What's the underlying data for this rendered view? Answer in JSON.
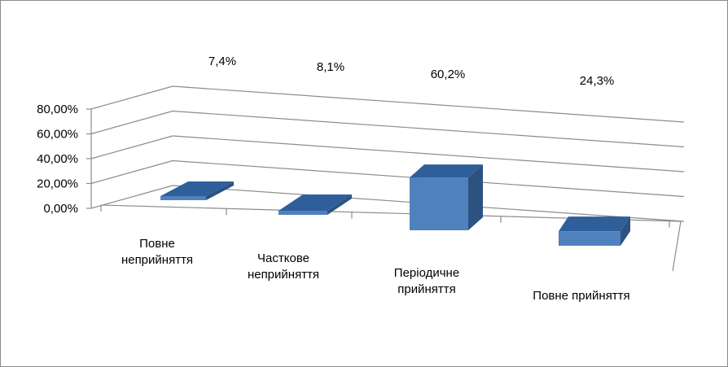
{
  "chart_data": {
    "type": "bar",
    "title": "",
    "xlabel": "",
    "ylabel": "",
    "categories": [
      [
        "Повне",
        "неприйняття"
      ],
      [
        "Часткове",
        "неприйняття"
      ],
      [
        "Періодичне",
        "прийняття"
      ],
      [
        "Повне прийняття"
      ]
    ],
    "values": [
      7.4,
      8.1,
      60.2,
      24.3
    ],
    "data_labels": [
      "7,4%",
      "8,1%",
      "60,2%",
      "24,3%"
    ],
    "y_ticks": [
      "0,00%",
      "20,00%",
      "40,00%",
      "60,00%",
      "80,00%"
    ],
    "ylim": [
      0,
      80
    ],
    "grid": true,
    "legend": "none",
    "bar_color": "#4f81bd",
    "bar_top_color": "#2f5f9a",
    "bar_side_color": "#2c5282",
    "grid_color": "#8c8c8c"
  }
}
